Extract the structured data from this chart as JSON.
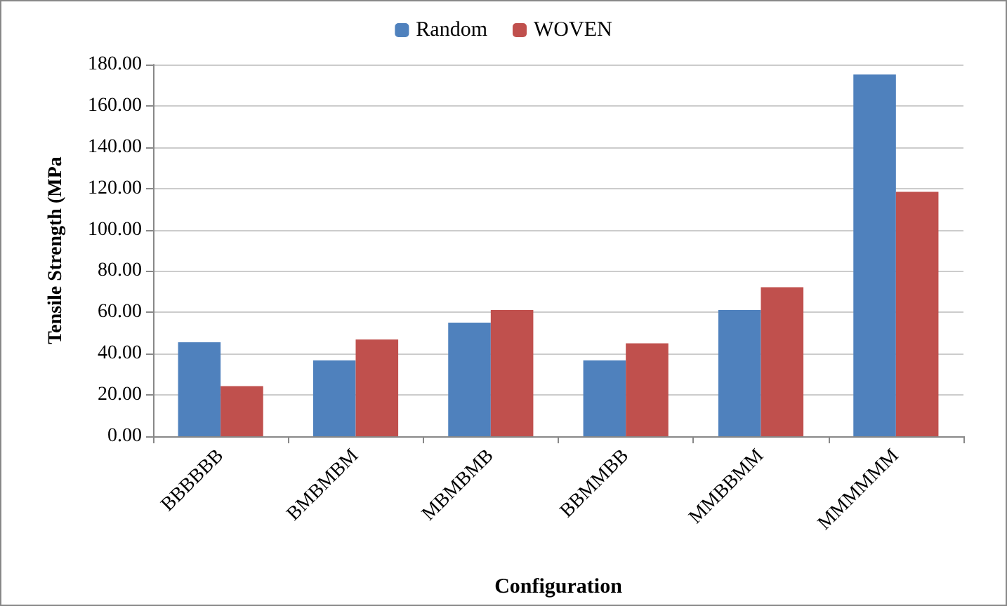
{
  "chart_data": {
    "type": "bar",
    "xlabel": "Configuration",
    "ylabel": "Tensile Strength (MPa",
    "categories": [
      "BBBBBB",
      "BMBMBM",
      "MBMBMB",
      "BBMMBB",
      "MMBBMM",
      "MMMMMM"
    ],
    "series": [
      {
        "name": "Random",
        "color": "#4f81bd",
        "values": [
          45.5,
          36.8,
          55.0,
          36.8,
          61.1,
          175.2
        ]
      },
      {
        "name": "WOVEN",
        "color": "#c0504d",
        "values": [
          24.3,
          46.9,
          61.1,
          45.0,
          72.2,
          118.4
        ]
      }
    ],
    "ylim": [
      0,
      180
    ],
    "yticks": [
      {
        "value": 0,
        "label": "0.00"
      },
      {
        "value": 20,
        "label": "20.00"
      },
      {
        "value": 40,
        "label": "40.00"
      },
      {
        "value": 60,
        "label": "60.00"
      },
      {
        "value": 80,
        "label": "80.00"
      },
      {
        "value": 100,
        "label": "100.00"
      },
      {
        "value": 120,
        "label": "120.00"
      },
      {
        "value": 140,
        "label": "140.00"
      },
      {
        "value": 160,
        "label": "160.00"
      },
      {
        "value": 180,
        "label": "180.00"
      }
    ],
    "grid": "y",
    "legend": "top"
  }
}
